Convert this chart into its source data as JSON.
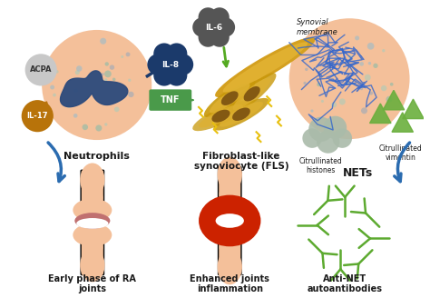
{
  "background_color": "#ffffff",
  "labels": {
    "neutrophils": "Neutrophils",
    "fls": "Fibroblast-like\nsynoviocyte (FLS)",
    "nets": "NETs",
    "citrullinated_histones": "Citrullinated\nhistones",
    "citrullinated_vimentin": "Citrullinated\nvimentin",
    "early_phase": "Early phase of RA\njoints",
    "enhanced_joints": "Enhanced joints\ninflammation",
    "anti_net": "Anti-NET\nautoantibodies",
    "acpa": "ACPA",
    "il17": "IL-17",
    "il8": "IL-8",
    "tnf": "TNF",
    "il6": "IL-6",
    "synovial": "Synovial\nmembrane"
  },
  "colors": {
    "arrow_blue": "#2B6CB0",
    "il8_bg": "#1B3A6B",
    "tnf_bg": "#4A9A4A",
    "il6_bg": "#555555",
    "acpa_bg": "#C8C8C8",
    "il17_bg": "#B8730A",
    "neutrophil_skin": "#F4C09A",
    "neutrophil_blob": "#2C4A7C",
    "bone_skin": "#F4C09A",
    "bone_shadow": "#E8A070",
    "joint_pink": "#C87070",
    "joint_red": "#CC2200",
    "antibody_green": "#5DAA30",
    "fls_gold": "#C8980A",
    "fls_brown": "#7A5010",
    "nets_blue": "#3366CC",
    "hist_green": "#AABBAA",
    "vim_green": "#6AAF3D",
    "dot_teal": "#88BBAA",
    "dot_blue": "#9AAABB",
    "text_dark": "#1A1A1A"
  }
}
